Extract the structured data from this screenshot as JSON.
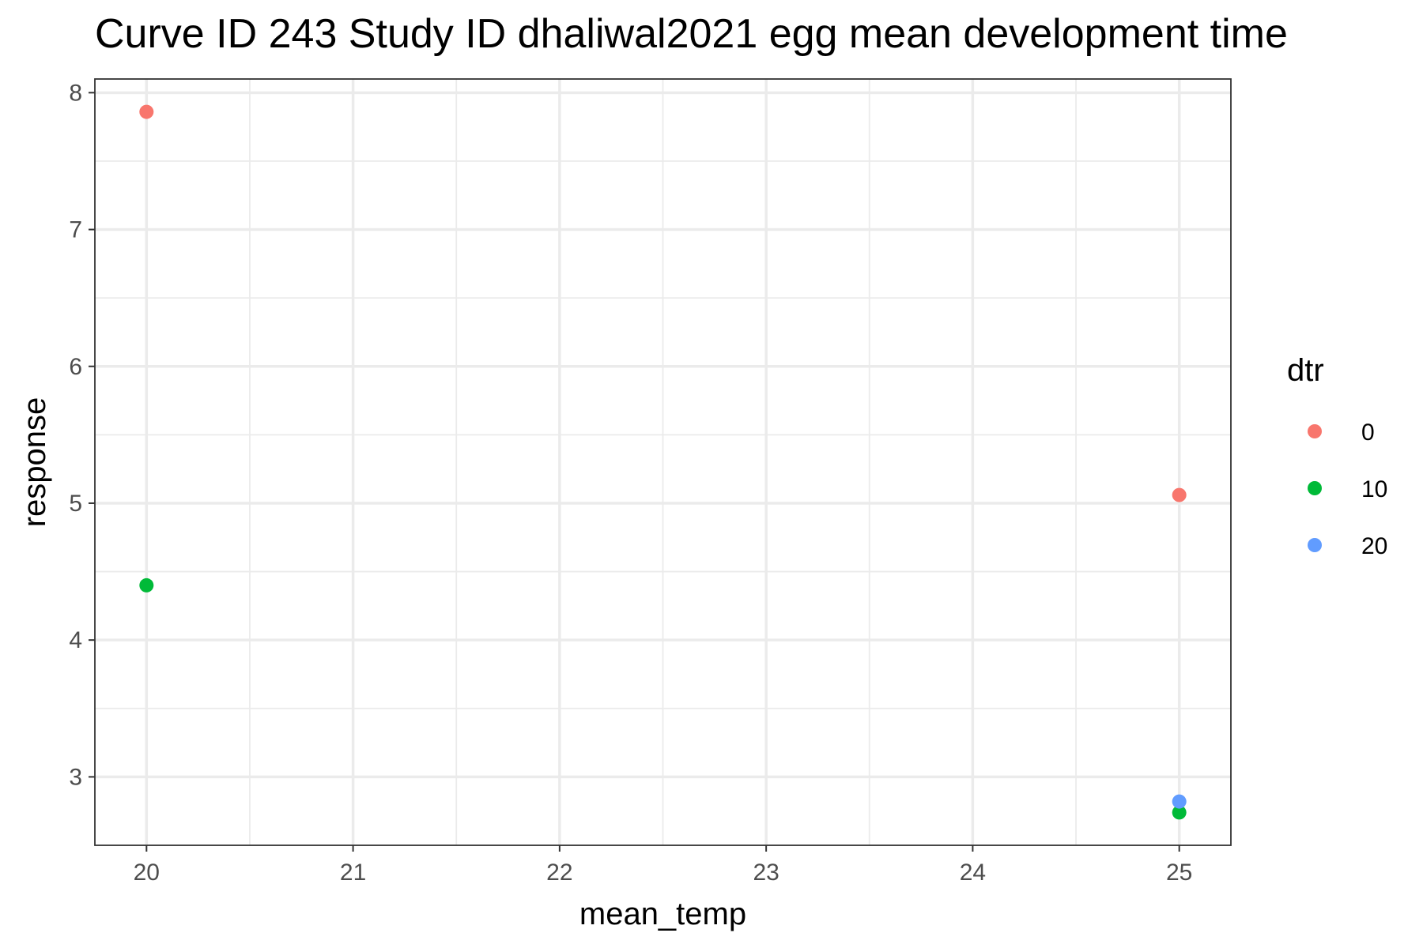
{
  "chart_data": {
    "type": "scatter",
    "title": "Curve ID 243 Study ID dhaliwal2021 egg mean development time",
    "xlabel": "mean_temp",
    "ylabel": "response",
    "xlim": [
      19.75,
      25.25
    ],
    "ylim": [
      2.5,
      8.1
    ],
    "x_ticks": [
      20,
      21,
      22,
      23,
      24,
      25
    ],
    "y_ticks": [
      3,
      4,
      5,
      6,
      7,
      8
    ],
    "grid": true,
    "legend": {
      "title": "dtr",
      "position": "right"
    },
    "series": [
      {
        "name": "0",
        "color": "#F8766D",
        "points": [
          {
            "x": 20,
            "y": 7.86
          },
          {
            "x": 25,
            "y": 5.06
          }
        ]
      },
      {
        "name": "10",
        "color": "#00BA38",
        "points": [
          {
            "x": 20,
            "y": 4.4
          },
          {
            "x": 25,
            "y": 2.74
          }
        ]
      },
      {
        "name": "20",
        "color": "#619CFF",
        "points": [
          {
            "x": 25,
            "y": 2.82
          }
        ]
      }
    ]
  }
}
